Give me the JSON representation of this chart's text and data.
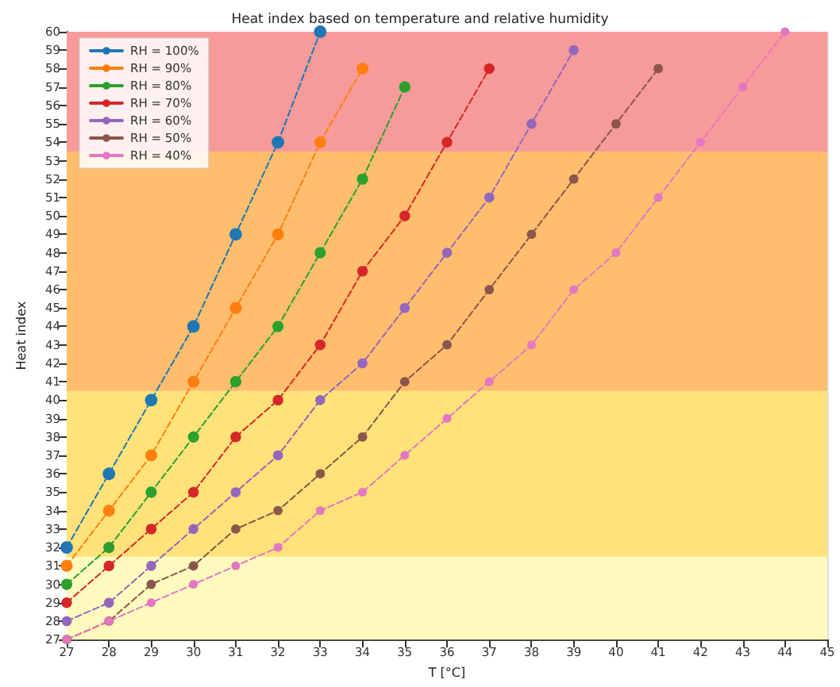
{
  "chart_data": {
    "type": "line",
    "title": "Heat index based on temperature and relative humidity",
    "xlabel": "T [°C]",
    "ylabel": "Heat index",
    "x": [
      27,
      28,
      29,
      30,
      31,
      32,
      33,
      34,
      35,
      36,
      37,
      38,
      39,
      40,
      41,
      42,
      43,
      44
    ],
    "series": [
      {
        "name": "RH = 100%",
        "color": "#1f77b4",
        "values": [
          32,
          36,
          40,
          44,
          49,
          54,
          60,
          null,
          null,
          null,
          null,
          null,
          null,
          null,
          null,
          null,
          null,
          null
        ]
      },
      {
        "name": "RH = 90%",
        "color": "#ff7f0e",
        "values": [
          31,
          34,
          37,
          41,
          45,
          49,
          54,
          58,
          null,
          null,
          null,
          null,
          null,
          null,
          null,
          null,
          null,
          null
        ]
      },
      {
        "name": "RH = 80%",
        "color": "#2ca02c",
        "values": [
          30,
          32,
          35,
          38,
          41,
          44,
          48,
          52,
          57,
          null,
          null,
          null,
          null,
          null,
          null,
          null,
          null,
          null
        ]
      },
      {
        "name": "RH = 70%",
        "color": "#d62728",
        "values": [
          29,
          31,
          33,
          35,
          38,
          40,
          43,
          47,
          50,
          54,
          58,
          null,
          null,
          null,
          null,
          null,
          null,
          null
        ]
      },
      {
        "name": "RH = 60%",
        "color": "#9467bd",
        "values": [
          28,
          29,
          31,
          33,
          35,
          37,
          40,
          42,
          45,
          48,
          51,
          55,
          59,
          null,
          null,
          null,
          null,
          null
        ]
      },
      {
        "name": "RH = 50%",
        "color": "#8c564b",
        "values": [
          27,
          28,
          30,
          31,
          33,
          34,
          36,
          38,
          41,
          43,
          46,
          49,
          52,
          55,
          58,
          null,
          null,
          null
        ]
      },
      {
        "name": "RH = 40%",
        "color": "#e377c2",
        "values": [
          27,
          28,
          29,
          30,
          31,
          32,
          34,
          35,
          37,
          39,
          41,
          43,
          46,
          48,
          51,
          54,
          57,
          60
        ]
      }
    ],
    "xlim": [
      27,
      45
    ],
    "xticks": [
      27,
      28,
      29,
      30,
      31,
      32,
      33,
      34,
      35,
      36,
      37,
      38,
      39,
      40,
      41,
      42,
      43,
      44,
      45
    ],
    "ylim": [
      27,
      60
    ],
    "yticks": [
      27,
      28,
      29,
      30,
      31,
      32,
      33,
      34,
      35,
      36,
      37,
      38,
      39,
      40,
      41,
      42,
      43,
      44,
      45,
      46,
      47,
      48,
      49,
      50,
      51,
      52,
      53,
      54,
      55,
      56,
      57,
      58,
      59,
      60
    ],
    "bands": [
      {
        "axis": "y",
        "from": 27,
        "to": 31.5,
        "color": "#fffbbf"
      },
      {
        "axis": "y",
        "from": 31.5,
        "to": 40.5,
        "color": "#ffe27a"
      },
      {
        "axis": "y",
        "from": 40.5,
        "to": 53.5,
        "color": "#ffbd6e"
      },
      {
        "axis": "y",
        "from": 53.5,
        "to": 60,
        "color": "#f79a9a"
      }
    ],
    "grid": true,
    "legend": "top left",
    "marker": "circle",
    "line_style": "dashed"
  }
}
